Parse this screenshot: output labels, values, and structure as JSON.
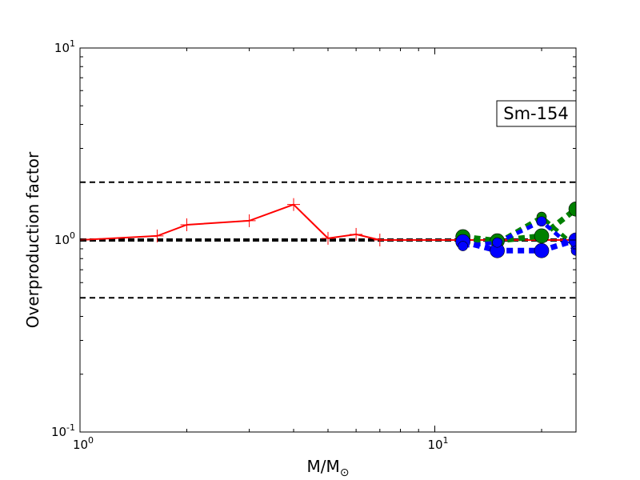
{
  "chart_data": {
    "type": "line",
    "title": "",
    "xlabel": "M/M",
    "xlabel_sub": "⊙",
    "ylabel": "Overproduction factor",
    "xscale": "log",
    "yscale": "log",
    "xlim": [
      1,
      25
    ],
    "ylim": [
      0.1,
      10
    ],
    "xticks": [
      {
        "value": 1,
        "base": "10",
        "exp": "0"
      },
      {
        "value": 10,
        "base": "10",
        "exp": "1"
      }
    ],
    "yticks": [
      {
        "value": 0.1,
        "base": "10",
        "exp": "-1"
      },
      {
        "value": 1,
        "base": "10",
        "exp": "0"
      },
      {
        "value": 10,
        "base": "10",
        "exp": "1"
      }
    ],
    "annotation": "Sm-154",
    "grid": false,
    "legend": "none",
    "reference_lines": [
      {
        "y": 2.0,
        "style": "dashed"
      },
      {
        "y": 1.0,
        "style": "dashed-bold"
      },
      {
        "y": 0.5,
        "style": "dashed"
      }
    ],
    "series": [
      {
        "color": "#ff0000",
        "line": "solid",
        "marker": "plus",
        "x": [
          1.0,
          1.65,
          2.0,
          3.0,
          4.0,
          5.0,
          6.0,
          7.0,
          12.0,
          15.0,
          20.0,
          25.0
        ],
        "y": [
          1.0,
          1.05,
          1.2,
          1.26,
          1.53,
          1.02,
          1.07,
          1.0,
          1.0,
          1.0,
          1.0,
          1.0
        ]
      },
      {
        "color": "#008000",
        "line": "dotted",
        "marker": "circle",
        "marker_size": "large",
        "x": [
          12.0,
          15.0,
          20.0,
          25.0
        ],
        "y": [
          1.04,
          0.99,
          1.05,
          1.45
        ]
      },
      {
        "color": "#008000",
        "line": "dotted",
        "marker": "circle",
        "marker_size": "small",
        "x": [
          12.0,
          15.0,
          20.0,
          25.0
        ],
        "y": [
          0.97,
          0.97,
          1.32,
          0.92
        ]
      },
      {
        "color": "#0000ff",
        "line": "dotted",
        "marker": "circle",
        "marker_size": "large",
        "x": [
          12.0,
          15.0,
          20.0,
          25.0
        ],
        "y": [
          0.98,
          0.88,
          0.88,
          1.0
        ]
      },
      {
        "color": "#0000ff",
        "line": "dotted",
        "marker": "circle",
        "marker_size": "small",
        "x": [
          12.0,
          15.0,
          20.0,
          25.0
        ],
        "y": [
          0.93,
          0.97,
          1.25,
          0.88
        ]
      }
    ]
  }
}
